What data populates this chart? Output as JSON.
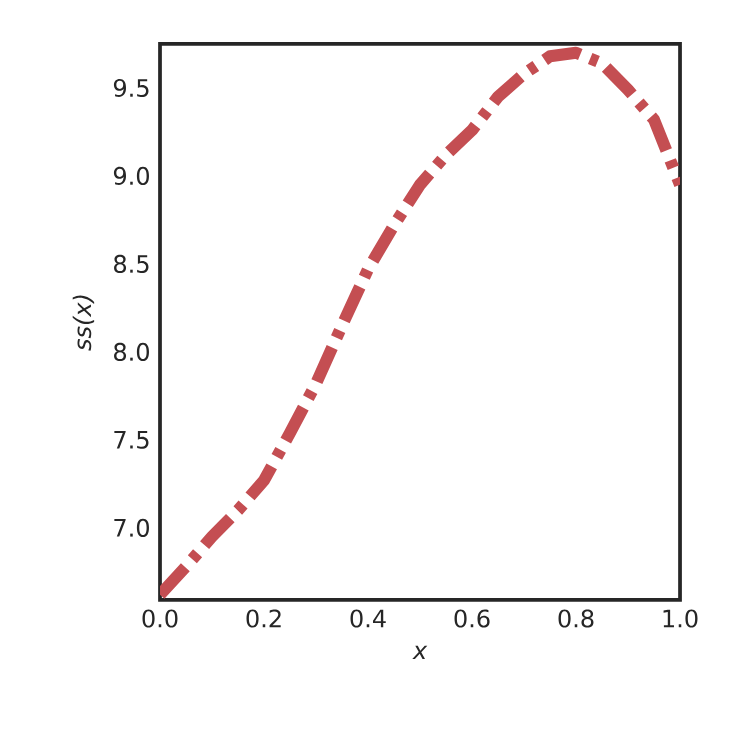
{
  "chart_data": {
    "type": "line",
    "xlabel": "x",
    "ylabel": "ss(x)",
    "x": [
      0,
      0.05,
      0.1,
      0.15,
      0.2,
      0.25,
      0.3,
      0.35,
      0.4,
      0.45,
      0.5,
      0.55,
      0.6,
      0.65,
      0.7,
      0.75,
      0.8,
      0.85,
      0.9,
      0.95,
      1.0
    ],
    "series": [
      {
        "color": "#c44e52",
        "values": [
          6.62,
          6.78,
          6.95,
          7.1,
          7.27,
          7.54,
          7.82,
          8.15,
          8.47,
          8.72,
          8.95,
          9.12,
          9.26,
          9.45,
          9.58,
          9.68,
          9.7,
          9.64,
          9.49,
          9.32,
          8.95
        ]
      }
    ],
    "xlim": [
      0,
      1
    ],
    "ylim": [
      6.59,
      9.75
    ],
    "xticks": [
      {
        "value": 0,
        "label": "0.0"
      },
      {
        "value": 0.2,
        "label": "0.2"
      },
      {
        "value": 0.4,
        "label": "0.4"
      },
      {
        "value": 0.6,
        "label": "0.6"
      },
      {
        "value": 0.8,
        "label": "0.8"
      },
      {
        "value": 1,
        "label": "1.0"
      }
    ],
    "yticks": [
      {
        "value": 7,
        "label": "7.0"
      },
      {
        "value": 7.5,
        "label": "7.5"
      },
      {
        "value": 8,
        "label": "8.0"
      },
      {
        "value": 8.5,
        "label": "8.5"
      },
      {
        "value": 9,
        "label": "9.0"
      },
      {
        "value": 9.5,
        "label": "9.5"
      }
    ],
    "line_style": "dashdot"
  }
}
